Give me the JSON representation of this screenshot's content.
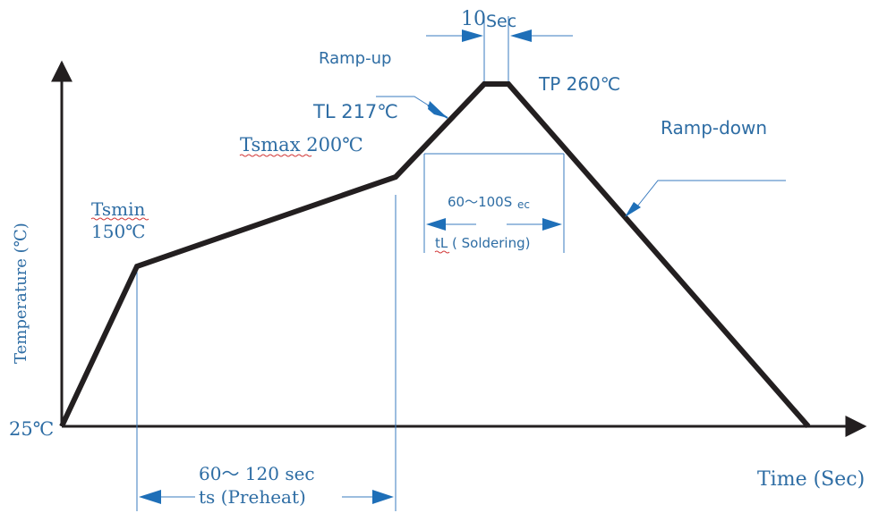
{
  "labels": {
    "ten_sec_num": "10",
    "ten_sec_unit": "Sec",
    "ramp_up": "Ramp-up",
    "tp": "TP 260℃",
    "tl": "TL 217℃",
    "tsmax": "Tsmax 200℃",
    "ramp_down": "Ramp-down",
    "tsmin": "Tsmin",
    "tsmin_temp": "150℃",
    "sixty_hundred": "60～100S",
    "sixty_hundred_sub": "ec",
    "tl_soldering": "tL ( Soldering)",
    "y_axis": "Temperature (℃)",
    "start_temp": "25℃",
    "preheat_time": "60～ 120 sec",
    "preheat_name": "ts (Preheat)",
    "x_axis": "Time (Sec)"
  },
  "colors": {
    "profile": "#231f20",
    "text": "#2e6da4",
    "arrow": "#1e6fb8",
    "guide": "#3a7bbf",
    "squiggle": "#d23a3a"
  }
}
